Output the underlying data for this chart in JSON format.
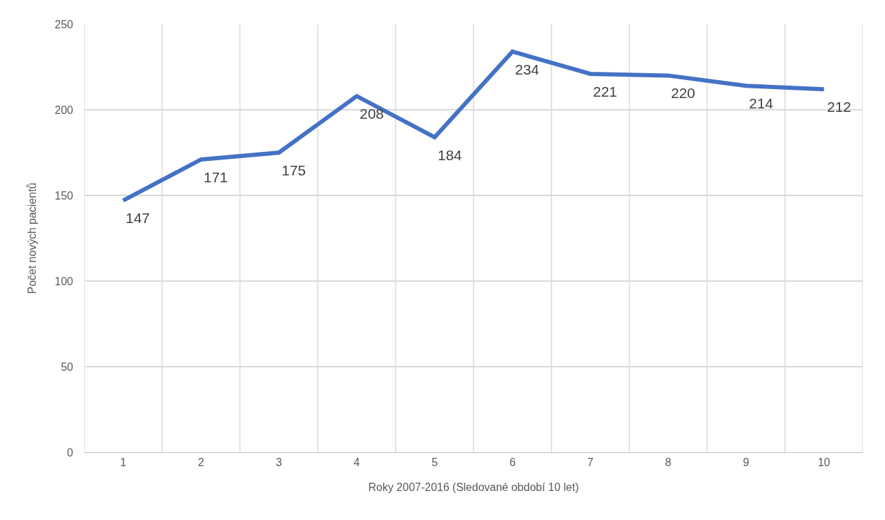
{
  "chart_data": {
    "type": "line",
    "xlabel": "Roky 2007-2016 (Sledované období 10 let)",
    "ylabel": "Počet nových pacientů",
    "categories": [
      "1",
      "2",
      "3",
      "4",
      "5",
      "6",
      "7",
      "8",
      "9",
      "10"
    ],
    "series": [
      {
        "color": "#4472c4",
        "values": [
          147,
          171,
          175,
          208,
          184,
          234,
          221,
          220,
          214,
          212
        ]
      }
    ],
    "ylim": [
      0,
      250
    ],
    "yticks": [
      0,
      50,
      100,
      150,
      200,
      250
    ],
    "grid": true,
    "data_labels": true,
    "marker": "none",
    "line_style": "solid"
  }
}
